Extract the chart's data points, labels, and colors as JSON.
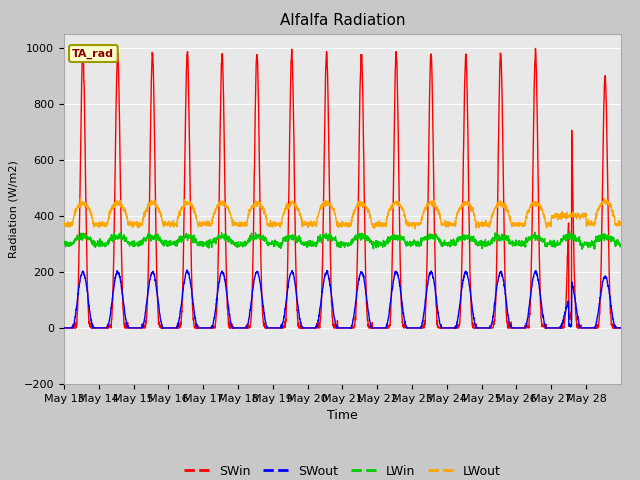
{
  "title": "Alfalfa Radiation",
  "ylabel": "Radiation (W/m2)",
  "xlabel": "Time",
  "annotation": "TA_rad",
  "ylim": [
    -200,
    1050
  ],
  "xtick_labels": [
    "May 13",
    "May 14",
    "May 15",
    "May 16",
    "May 17",
    "May 18",
    "May 19",
    "May 20",
    "May 21",
    "May 22",
    "May 23",
    "May 24",
    "May 25",
    "May 26",
    "May 27",
    "May 28"
  ],
  "fig_bg_color": "#c8c8c8",
  "plot_bg_color": "#e8e8e8",
  "grid_color": "#ffffff",
  "SWin_color": "#ff0000",
  "SWout_color": "#0000ff",
  "LWin_color": "#00cc00",
  "LWout_color": "#ffa500",
  "n_days": 16,
  "SWin_peak": 980,
  "SWout_peak": 200,
  "LWin_base": 300,
  "LWout_base": 370,
  "yticks": [
    -200,
    0,
    200,
    400,
    600,
    800,
    1000
  ]
}
